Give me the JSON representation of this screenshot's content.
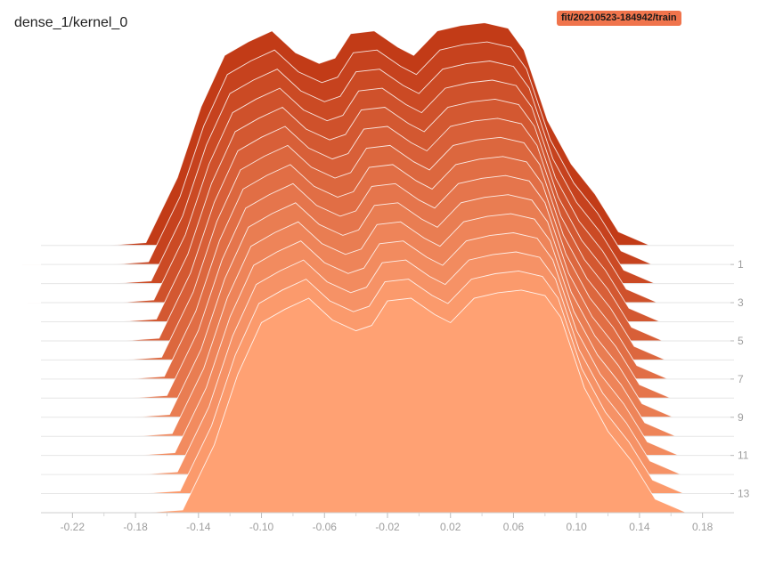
{
  "title": "dense_1/kernel_0",
  "run_badge": {
    "label": "fit/20210523-184942/train",
    "color": "#f0744c"
  },
  "chart_data": {
    "type": "area",
    "title": "dense_1/kernel_0",
    "xlabel": "",
    "ylabel": "",
    "xlim": [
      -0.24,
      0.2
    ],
    "x_ticks": [
      -0.22,
      -0.18,
      -0.14,
      -0.1,
      -0.06,
      -0.02,
      0.02,
      0.06,
      0.1,
      0.14,
      0.18
    ],
    "x_tick_labels": [
      "-0.22",
      "-0.18",
      "-0.14",
      "-0.10",
      "-0.06",
      "-0.02",
      "0.02",
      "0.06",
      "0.10",
      "0.14",
      "0.18"
    ],
    "step_ticks": [
      1,
      3,
      5,
      7,
      9,
      11,
      13
    ],
    "step_tick_labels": [
      "1",
      "3",
      "5",
      "7",
      "9",
      "11",
      "13"
    ],
    "steps": [
      0,
      1,
      2,
      3,
      4,
      5,
      6,
      7,
      8,
      9,
      10,
      11,
      12,
      13,
      14
    ],
    "x": [
      -0.23,
      -0.2,
      -0.175,
      -0.15,
      -0.13,
      -0.115,
      -0.1,
      -0.085,
      -0.07,
      -0.055,
      -0.04,
      -0.03,
      -0.02,
      -0.005,
      0.01,
      0.02,
      0.035,
      0.05,
      0.065,
      0.08,
      0.09,
      0.105,
      0.12,
      0.135,
      0.15,
      0.17,
      0.19
    ],
    "values": [
      0,
      0,
      0,
      0.01,
      0.25,
      0.51,
      0.7,
      0.75,
      0.79,
      0.71,
      0.67,
      0.69,
      0.78,
      0.79,
      0.73,
      0.7,
      0.79,
      0.81,
      0.82,
      0.8,
      0.72,
      0.46,
      0.3,
      0.19,
      0.05,
      0,
      0
    ],
    "color_recent": "#c23b17",
    "color_oldest": "#ffa173",
    "grid": false,
    "legend": "none"
  }
}
